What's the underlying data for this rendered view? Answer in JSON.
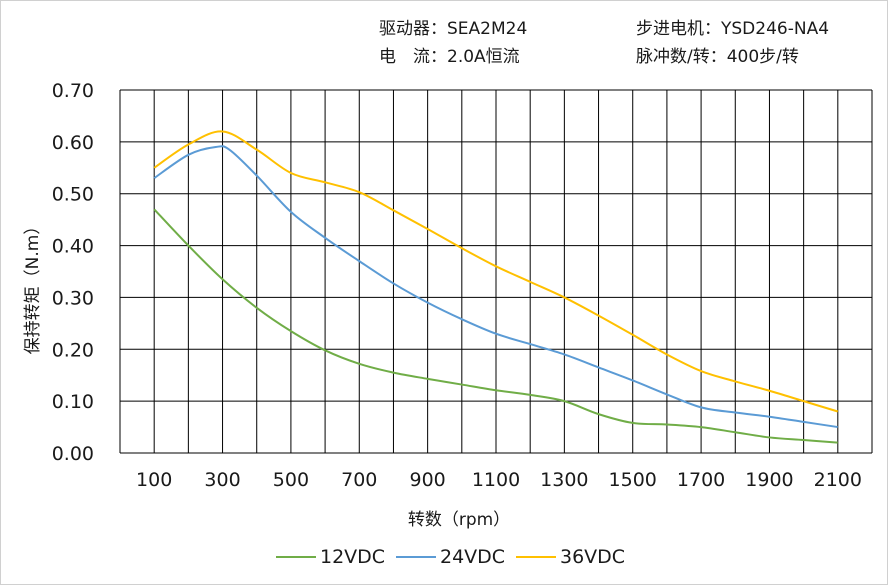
{
  "header": {
    "driver": "驱动器：SEA2M24",
    "motor": "步进电机：YSD246-NA4",
    "current": "电　流：2.0A恒流",
    "pulse": "脉冲数/转：400步/转"
  },
  "chart_data": {
    "type": "line",
    "title": "",
    "xlabel": "转数（rpm）",
    "ylabel": "保持转矩（N.m）",
    "x_ticks": [
      100,
      300,
      500,
      700,
      900,
      1100,
      1300,
      1500,
      1700,
      1900,
      2100
    ],
    "y_ticks": [
      "0.00",
      "0.10",
      "0.20",
      "0.30",
      "0.40",
      "0.50",
      "0.60",
      "0.70"
    ],
    "xlim": [
      0,
      2200
    ],
    "ylim": [
      0,
      0.7
    ],
    "grid": true,
    "legend_position": "bottom",
    "series": [
      {
        "name": "12VDC",
        "color": "#70ad47",
        "points": [
          [
            100,
            0.47
          ],
          [
            200,
            0.4
          ],
          [
            300,
            0.335
          ],
          [
            400,
            0.28
          ],
          [
            500,
            0.235
          ],
          [
            600,
            0.198
          ],
          [
            700,
            0.172
          ],
          [
            800,
            0.155
          ],
          [
            900,
            0.143
          ],
          [
            1000,
            0.132
          ],
          [
            1100,
            0.121
          ],
          [
            1200,
            0.112
          ],
          [
            1300,
            0.1
          ],
          [
            1400,
            0.075
          ],
          [
            1500,
            0.058
          ],
          [
            1600,
            0.055
          ],
          [
            1700,
            0.05
          ],
          [
            1800,
            0.04
          ],
          [
            1900,
            0.03
          ],
          [
            2000,
            0.025
          ],
          [
            2100,
            0.02
          ]
        ]
      },
      {
        "name": "24VDC",
        "color": "#5b9bd5",
        "points": [
          [
            100,
            0.53
          ],
          [
            200,
            0.575
          ],
          [
            280,
            0.59
          ],
          [
            320,
            0.585
          ],
          [
            400,
            0.535
          ],
          [
            500,
            0.465
          ],
          [
            600,
            0.415
          ],
          [
            700,
            0.37
          ],
          [
            800,
            0.327
          ],
          [
            900,
            0.29
          ],
          [
            1000,
            0.258
          ],
          [
            1100,
            0.23
          ],
          [
            1200,
            0.21
          ],
          [
            1300,
            0.19
          ],
          [
            1400,
            0.165
          ],
          [
            1500,
            0.14
          ],
          [
            1600,
            0.113
          ],
          [
            1700,
            0.088
          ],
          [
            1800,
            0.078
          ],
          [
            1900,
            0.07
          ],
          [
            2000,
            0.06
          ],
          [
            2100,
            0.05
          ]
        ]
      },
      {
        "name": "36VDC",
        "color": "#ffc000",
        "points": [
          [
            100,
            0.55
          ],
          [
            200,
            0.595
          ],
          [
            300,
            0.62
          ],
          [
            400,
            0.585
          ],
          [
            500,
            0.54
          ],
          [
            600,
            0.522
          ],
          [
            700,
            0.503
          ],
          [
            800,
            0.468
          ],
          [
            900,
            0.432
          ],
          [
            1000,
            0.395
          ],
          [
            1100,
            0.36
          ],
          [
            1200,
            0.33
          ],
          [
            1300,
            0.3
          ],
          [
            1400,
            0.265
          ],
          [
            1500,
            0.228
          ],
          [
            1600,
            0.19
          ],
          [
            1700,
            0.158
          ],
          [
            1800,
            0.138
          ],
          [
            1900,
            0.12
          ],
          [
            2000,
            0.1
          ],
          [
            2100,
            0.08
          ]
        ]
      }
    ]
  }
}
